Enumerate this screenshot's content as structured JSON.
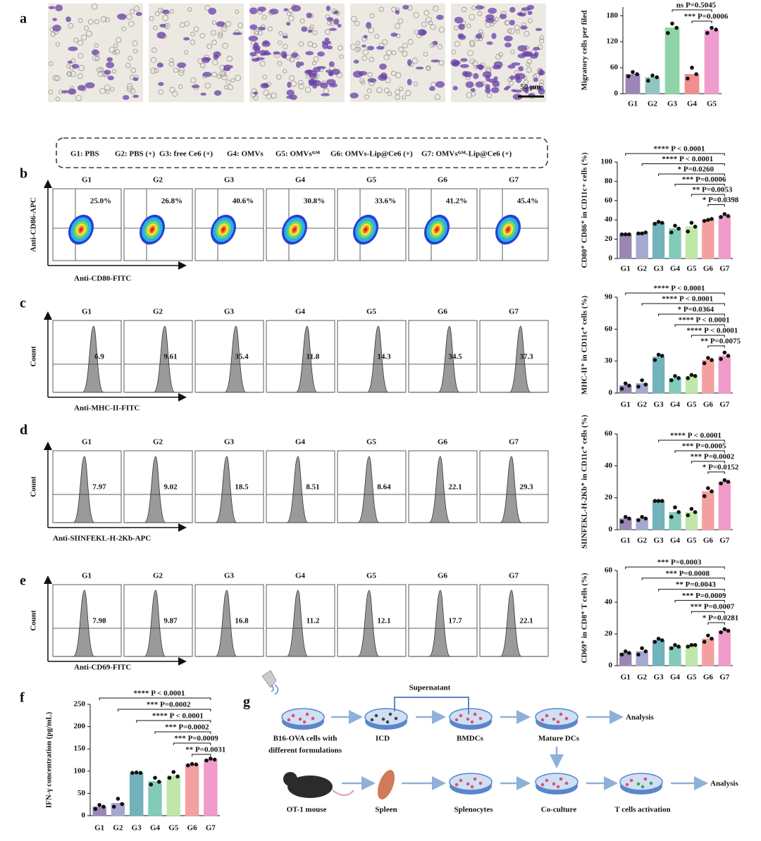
{
  "panel_labels": [
    "a",
    "b",
    "c",
    "d",
    "e",
    "f",
    "g"
  ],
  "micrographs": {
    "scale_bar": "50 μm"
  },
  "group_legend": [
    "G1: PBS",
    "G2: PBS (+)",
    "G3: free Ce6 (+)",
    "G4: OMVs",
    "G5: OMVsᴳᴹ",
    "G6: OMVs-Lip@Ce6 (+)",
    "G7: OMVsᴳᴹ-Lip@Ce6 (+)"
  ],
  "flow_panels": [
    {
      "groups": [
        "G1",
        "G2",
        "G3",
        "G4",
        "G5",
        "G6",
        "G7"
      ],
      "y_label": "Anti-CD86-APC",
      "x_label": "Anti-CD80-FITC",
      "gate_values": [
        "25.0%",
        "26.8%",
        "40.6%",
        "30.8%",
        "33.6%",
        "41.2%",
        "45.4%"
      ]
    },
    {
      "groups": [
        "G1",
        "G2",
        "G3",
        "G4",
        "G5",
        "G6",
        "G7"
      ],
      "y_label": "Count",
      "x_label": "Anti-MHC-II-FITC",
      "gate_values": [
        "6.9",
        "9.61",
        "35.4",
        "11.8",
        "14.3",
        "34.5",
        "37.3"
      ]
    },
    {
      "groups": [
        "G1",
        "G2",
        "G3",
        "G4",
        "G5",
        "G6",
        "G7"
      ],
      "y_label": "Count",
      "x_label": "Anti-SIINFEKL-H-2Kb-APC",
      "gate_values": [
        "7.97",
        "9.02",
        "18.5",
        "8.51",
        "8.64",
        "22.1",
        "29.3"
      ]
    },
    {
      "groups": [
        "G1",
        "G2",
        "G3",
        "G4",
        "G5",
        "G6",
        "G7"
      ],
      "y_label": "Count",
      "x_label": "Anti-CD69-FITC",
      "gate_values": [
        "7.98",
        "9.87",
        "16.8",
        "11.2",
        "12.1",
        "17.7",
        "22.1"
      ]
    }
  ],
  "chart_data": [
    {
      "type": "bar",
      "y_label": "Migratory cells per filed",
      "categories": [
        "G1",
        "G2",
        "G3",
        "G4",
        "G5"
      ],
      "colors": [
        "#9b86b5",
        "#8fc6c2",
        "#8fd4a6",
        "#f28e8e",
        "#ee9ccd"
      ],
      "values": [
        45,
        38,
        152,
        45,
        147
      ],
      "points": [
        [
          40,
          50,
          45
        ],
        [
          30,
          42,
          38
        ],
        [
          140,
          162,
          152
        ],
        [
          35,
          60,
          45
        ],
        [
          140,
          152,
          148
        ]
      ],
      "ylim": [
        0,
        200
      ],
      "yticks": [
        0,
        60,
        120,
        180
      ],
      "comparisons": [
        {
          "label": "ns P=0.5045",
          "from": "G3",
          "to": "G5"
        },
        {
          "label": "*** P=0.0006",
          "from": "G4",
          "to": "G5"
        }
      ]
    },
    {
      "type": "bar",
      "y_label": "CD80⁺ CD86⁺ in CD11c+ cells (%)",
      "categories": [
        "G1",
        "G2",
        "G3",
        "G4",
        "G5",
        "G6",
        "G7"
      ],
      "colors": [
        "#9b86b5",
        "#a5a8cf",
        "#72b2ba",
        "#82cbb8",
        "#bfe8a8",
        "#f5a0a0",
        "#f19bca"
      ],
      "values": [
        25,
        26,
        37,
        31,
        33,
        40,
        44
      ],
      "points": [
        [
          25,
          25,
          25
        ],
        [
          26,
          26,
          27
        ],
        [
          36,
          38,
          37
        ],
        [
          27,
          34,
          31
        ],
        [
          28,
          37,
          33
        ],
        [
          39,
          40,
          41
        ],
        [
          43,
          46,
          44
        ]
      ],
      "ylim": [
        0,
        100
      ],
      "yticks": [
        0,
        20,
        40,
        60,
        80,
        100
      ],
      "comparisons": [
        {
          "label": "**** P < 0.0001",
          "from": "G1",
          "to": "G7"
        },
        {
          "label": "**** P < 0.0001",
          "from": "G2",
          "to": "G7"
        },
        {
          "label": "* P=0.0260",
          "from": "G3",
          "to": "G7"
        },
        {
          "label": "*** P=0.0006",
          "from": "G4",
          "to": "G7"
        },
        {
          "label": "** P=0.0053",
          "from": "G5",
          "to": "G7"
        },
        {
          "label": "* P=0.0398",
          "from": "G6",
          "to": "G7"
        }
      ]
    },
    {
      "type": "bar",
      "y_label": "MHC-II⁺ in CD11c⁺ cells (%)",
      "categories": [
        "G1",
        "G2",
        "G3",
        "G4",
        "G5",
        "G6",
        "G7"
      ],
      "colors": [
        "#9b86b5",
        "#a5a8cf",
        "#72b2ba",
        "#82cbb8",
        "#bfe8a8",
        "#f5a0a0",
        "#f19bca"
      ],
      "values": [
        7,
        9,
        34,
        14,
        16,
        31,
        35
      ],
      "points": [
        [
          4,
          9,
          7
        ],
        [
          6,
          12,
          8
        ],
        [
          31,
          36,
          35
        ],
        [
          12,
          16,
          14
        ],
        [
          14,
          17,
          16
        ],
        [
          28,
          33,
          31
        ],
        [
          32,
          38,
          35
        ]
      ],
      "ylim": [
        0,
        90
      ],
      "yticks": [
        0,
        30,
        60,
        90
      ],
      "comparisons": [
        {
          "label": "**** P < 0.0001",
          "from": "G1",
          "to": "G7"
        },
        {
          "label": "**** P < 0.0001",
          "from": "G2",
          "to": "G7"
        },
        {
          "label": "* P=0.0364",
          "from": "G3",
          "to": "G7"
        },
        {
          "label": "**** P < 0.0001",
          "from": "G4",
          "to": "G7"
        },
        {
          "label": "**** P < 0.0001",
          "from": "G5",
          "to": "G7"
        },
        {
          "label": "** P=0.0075",
          "from": "G6",
          "to": "G7"
        }
      ]
    },
    {
      "type": "bar",
      "y_label": "SIINFEKL-H-2Kb⁺ in CD11c⁺ cells (%)",
      "categories": [
        "G1",
        "G2",
        "G3",
        "G4",
        "G5",
        "G6",
        "G7"
      ],
      "colors": [
        "#9b86b5",
        "#a5a8cf",
        "#72b2ba",
        "#82cbb8",
        "#bfe8a8",
        "#f5a0a0",
        "#f19bca"
      ],
      "values": [
        7,
        7,
        18,
        11,
        11,
        24,
        30
      ],
      "points": [
        [
          5,
          8,
          7
        ],
        [
          6,
          8,
          7
        ],
        [
          18,
          18,
          18
        ],
        [
          8,
          14,
          11
        ],
        [
          9,
          13,
          11
        ],
        [
          21,
          26,
          24
        ],
        [
          29,
          31,
          30
        ]
      ],
      "ylim": [
        0,
        60
      ],
      "yticks": [
        0,
        20,
        40,
        60
      ],
      "comparisons": [
        {
          "label": "**** P < 0.0001",
          "from": "G3",
          "to": "G7"
        },
        {
          "label": "*** P=0.0005",
          "from": "G4",
          "to": "G7"
        },
        {
          "label": "*** P=0.0002",
          "from": "G5",
          "to": "G7"
        },
        {
          "label": "* P=0.0152",
          "from": "G6",
          "to": "G7"
        }
      ]
    },
    {
      "type": "bar",
      "y_label": "CD69⁺ in CD8⁺ T cells (%)",
      "categories": [
        "G1",
        "G2",
        "G3",
        "G4",
        "G5",
        "G6",
        "G7"
      ],
      "colors": [
        "#9b86b5",
        "#a5a8cf",
        "#72b2ba",
        "#82cbb8",
        "#bfe8a8",
        "#f5a0a0",
        "#f19bca"
      ],
      "values": [
        8,
        9,
        16,
        12,
        13,
        17,
        22
      ],
      "points": [
        [
          7,
          9,
          8
        ],
        [
          7,
          11,
          9
        ],
        [
          15,
          17,
          16
        ],
        [
          11,
          13,
          12
        ],
        [
          12,
          13,
          13
        ],
        [
          15,
          19,
          17
        ],
        [
          21,
          23,
          22
        ]
      ],
      "ylim": [
        0,
        60
      ],
      "yticks": [
        0,
        20,
        40,
        60
      ],
      "comparisons": [
        {
          "label": "*** P=0.0003",
          "from": "G1",
          "to": "G7"
        },
        {
          "label": "*** P=0.0008",
          "from": "G2",
          "to": "G7"
        },
        {
          "label": "** P=0.0043",
          "from": "G3",
          "to": "G7"
        },
        {
          "label": "*** P=0.0009",
          "from": "G4",
          "to": "G7"
        },
        {
          "label": "*** P=0.0007",
          "from": "G5",
          "to": "G7"
        },
        {
          "label": "* P=0.0281",
          "from": "G6",
          "to": "G7"
        }
      ]
    },
    {
      "type": "bar",
      "y_label": "IFN-γ concentration (pg/mL)",
      "categories": [
        "G1",
        "G2",
        "G3",
        "G4",
        "G5",
        "G6",
        "G7"
      ],
      "colors": [
        "#9b86b5",
        "#a5a8cf",
        "#72b2ba",
        "#82cbb8",
        "#bfe8a8",
        "#f5a0a0",
        "#f19bca"
      ],
      "values": [
        20,
        28,
        96,
        77,
        90,
        115,
        126
      ],
      "points": [
        [
          15,
          24,
          20
        ],
        [
          20,
          38,
          26
        ],
        [
          96,
          97,
          96
        ],
        [
          70,
          85,
          76
        ],
        [
          85,
          98,
          88
        ],
        [
          113,
          116,
          115
        ],
        [
          124,
          128,
          126
        ]
      ],
      "ylim": [
        0,
        250
      ],
      "yticks": [
        0,
        50,
        100,
        150,
        200,
        250
      ],
      "comparisons": [
        {
          "label": "**** P < 0.0001",
          "from": "G1",
          "to": "G7"
        },
        {
          "label": "*** P=0.0002",
          "from": "G2",
          "to": "G7"
        },
        {
          "label": "**** P < 0.0001",
          "from": "G3",
          "to": "G7"
        },
        {
          "label": "*** P=0.0002",
          "from": "G4",
          "to": "G7"
        },
        {
          "label": "*** P=0.0009",
          "from": "G5",
          "to": "G7"
        },
        {
          "label": "** P=0.0031",
          "from": "G6",
          "to": "G7"
        }
      ]
    }
  ],
  "schematic": {
    "labels": [
      "Supernatant",
      "Analysis",
      "B16-OVA cells with",
      "different formulations",
      "ICD",
      "BMDCs",
      "Mature DCs",
      "OT-1 mouse",
      "Spleen",
      "Splenocytes",
      "Co-culture",
      "T cells activation",
      "Analysis"
    ]
  }
}
